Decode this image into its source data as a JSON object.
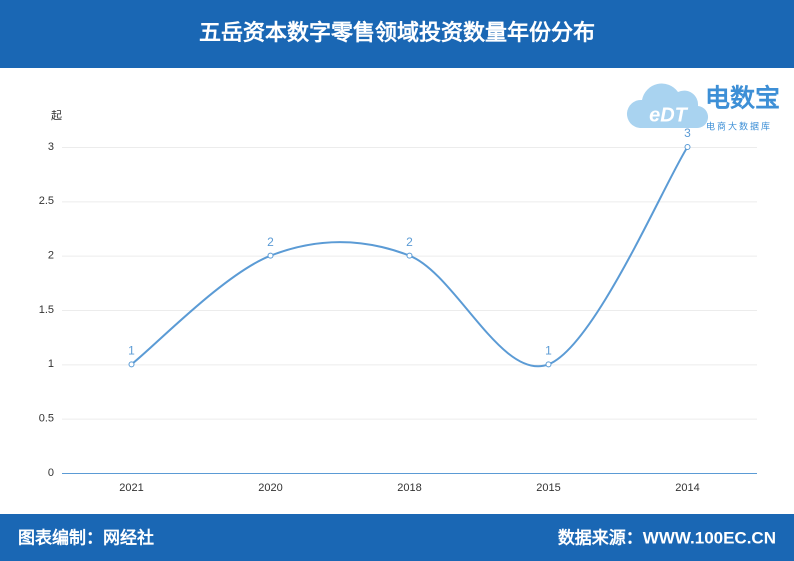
{
  "chart_data": {
    "type": "line",
    "title": "五岳资本数字零售领域投资数量年份分布",
    "y_label": "起",
    "categories": [
      "2021",
      "2020",
      "2018",
      "2015",
      "2014"
    ],
    "values": [
      1,
      2,
      2,
      1,
      3
    ],
    "color": "#5b9bd5",
    "ylim": [
      0,
      3
    ],
    "yticks": [
      0,
      0.5,
      1,
      1.5,
      2,
      2.5,
      3
    ],
    "grid": true,
    "smooth": true,
    "logo_text": "电数宝",
    "logo_subtext": "电商大数据库",
    "logo_mark": "eDT",
    "credit": "图表编制：网经社",
    "source": "数据来源：WWW.100EC.CN"
  }
}
